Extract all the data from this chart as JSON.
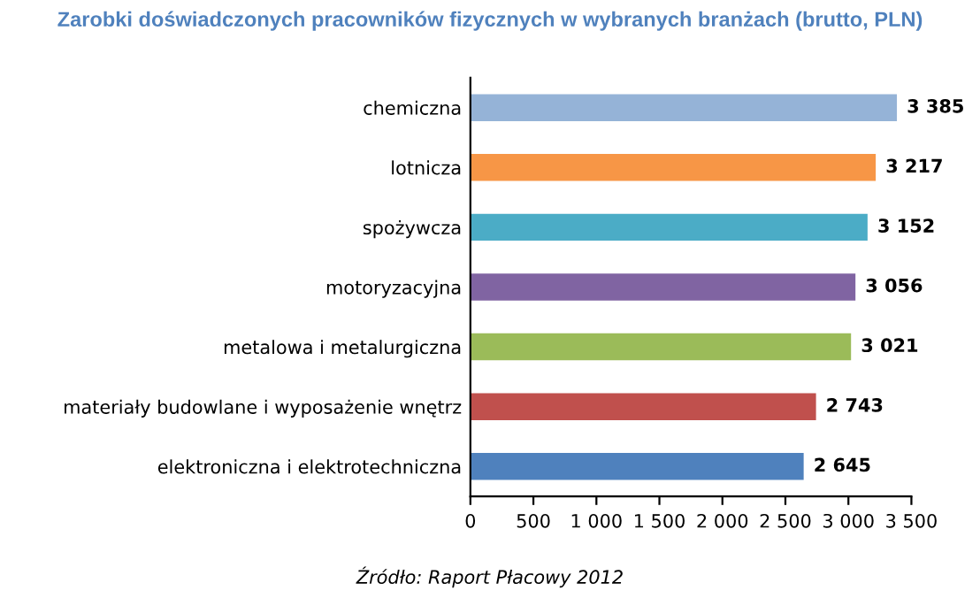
{
  "chart_data": {
    "type": "bar",
    "orientation": "horizontal",
    "title": "Zarobki doświadczonych pracowników fizycznych w wybranych branżach (brutto, PLN)",
    "categories": [
      "chemiczna",
      "lotnicza",
      "spożywcza",
      "motoryzacyjna",
      "metalowa i metalurgiczna",
      "materiały budowlane i wyposażenie wnętrz",
      "elektroniczna i elektrotechniczna"
    ],
    "values": [
      3385,
      3217,
      3152,
      3056,
      3021,
      2743,
      2645
    ],
    "colors": [
      "#95b3d7",
      "#f79646",
      "#4bacc6",
      "#8064a2",
      "#9bbb59",
      "#c0504d",
      "#4f81bd"
    ],
    "value_labels": [
      "3 385",
      "3 217",
      "3 152",
      "3 056",
      "3 021",
      "2 743",
      "2 645"
    ],
    "xlim": [
      0,
      3500
    ],
    "xticks": [
      0,
      500,
      {
        "value": 1000,
        "label": "1 000"
      },
      {
        "value": 1500,
        "label": "1 500"
      },
      {
        "value": 2000,
        "label": "2 000"
      },
      {
        "value": 2500,
        "label": "2 500"
      },
      {
        "value": 3000,
        "label": "3 000"
      },
      {
        "value": 3500,
        "label": "3 500"
      }
    ],
    "grid": false,
    "annotations": [
      "Źródło: Raport Płacowy 2012"
    ]
  }
}
